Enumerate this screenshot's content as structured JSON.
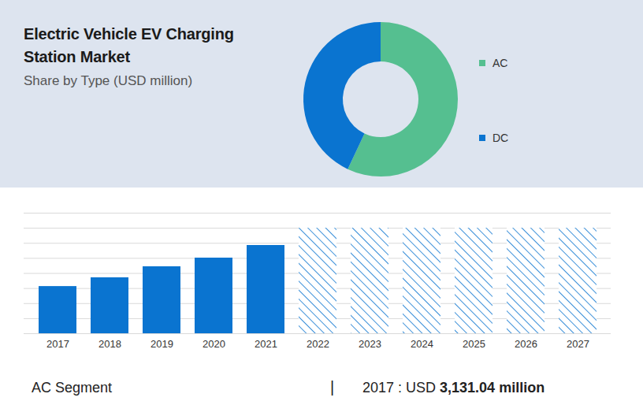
{
  "chart_data": [
    {
      "type": "pie",
      "title": "Electric Vehicle EV Charging Station Market",
      "subtitle": "Share by Type (USD million)",
      "categories": [
        "AC",
        "DC"
      ],
      "values": [
        57,
        43
      ],
      "colors": [
        "#55bf90",
        "#0a74d0"
      ],
      "legend": "right",
      "data_labels": false
    },
    {
      "type": "bar",
      "categories": [
        "2017",
        "2018",
        "2019",
        "2020",
        "2021",
        "2022",
        "2023",
        "2024",
        "2025",
        "2026",
        "2027"
      ],
      "series": [
        {
          "color": "#0a74d0",
          "values": [
            3131.04,
            3712,
            4444,
            5020,
            5856,
            null,
            null,
            null,
            null,
            null,
            null
          ]
        },
        {
          "color": "#0a74d0",
          "line_style": "hatched",
          "values": [
            null,
            null,
            null,
            null,
            null,
            7000,
            7000,
            7000,
            7000,
            7000,
            7000
          ]
        }
      ],
      "ylim": [
        0,
        8000
      ],
      "yticks": [
        0,
        1000,
        2000,
        3000,
        4000,
        5000,
        6000,
        7000,
        8000
      ],
      "grid": true,
      "tick_labels": "x"
    }
  ],
  "footer": {
    "segment": "AC Segment",
    "separator": "|",
    "lead": "2017 : USD",
    "value": "3,131.04 million"
  }
}
